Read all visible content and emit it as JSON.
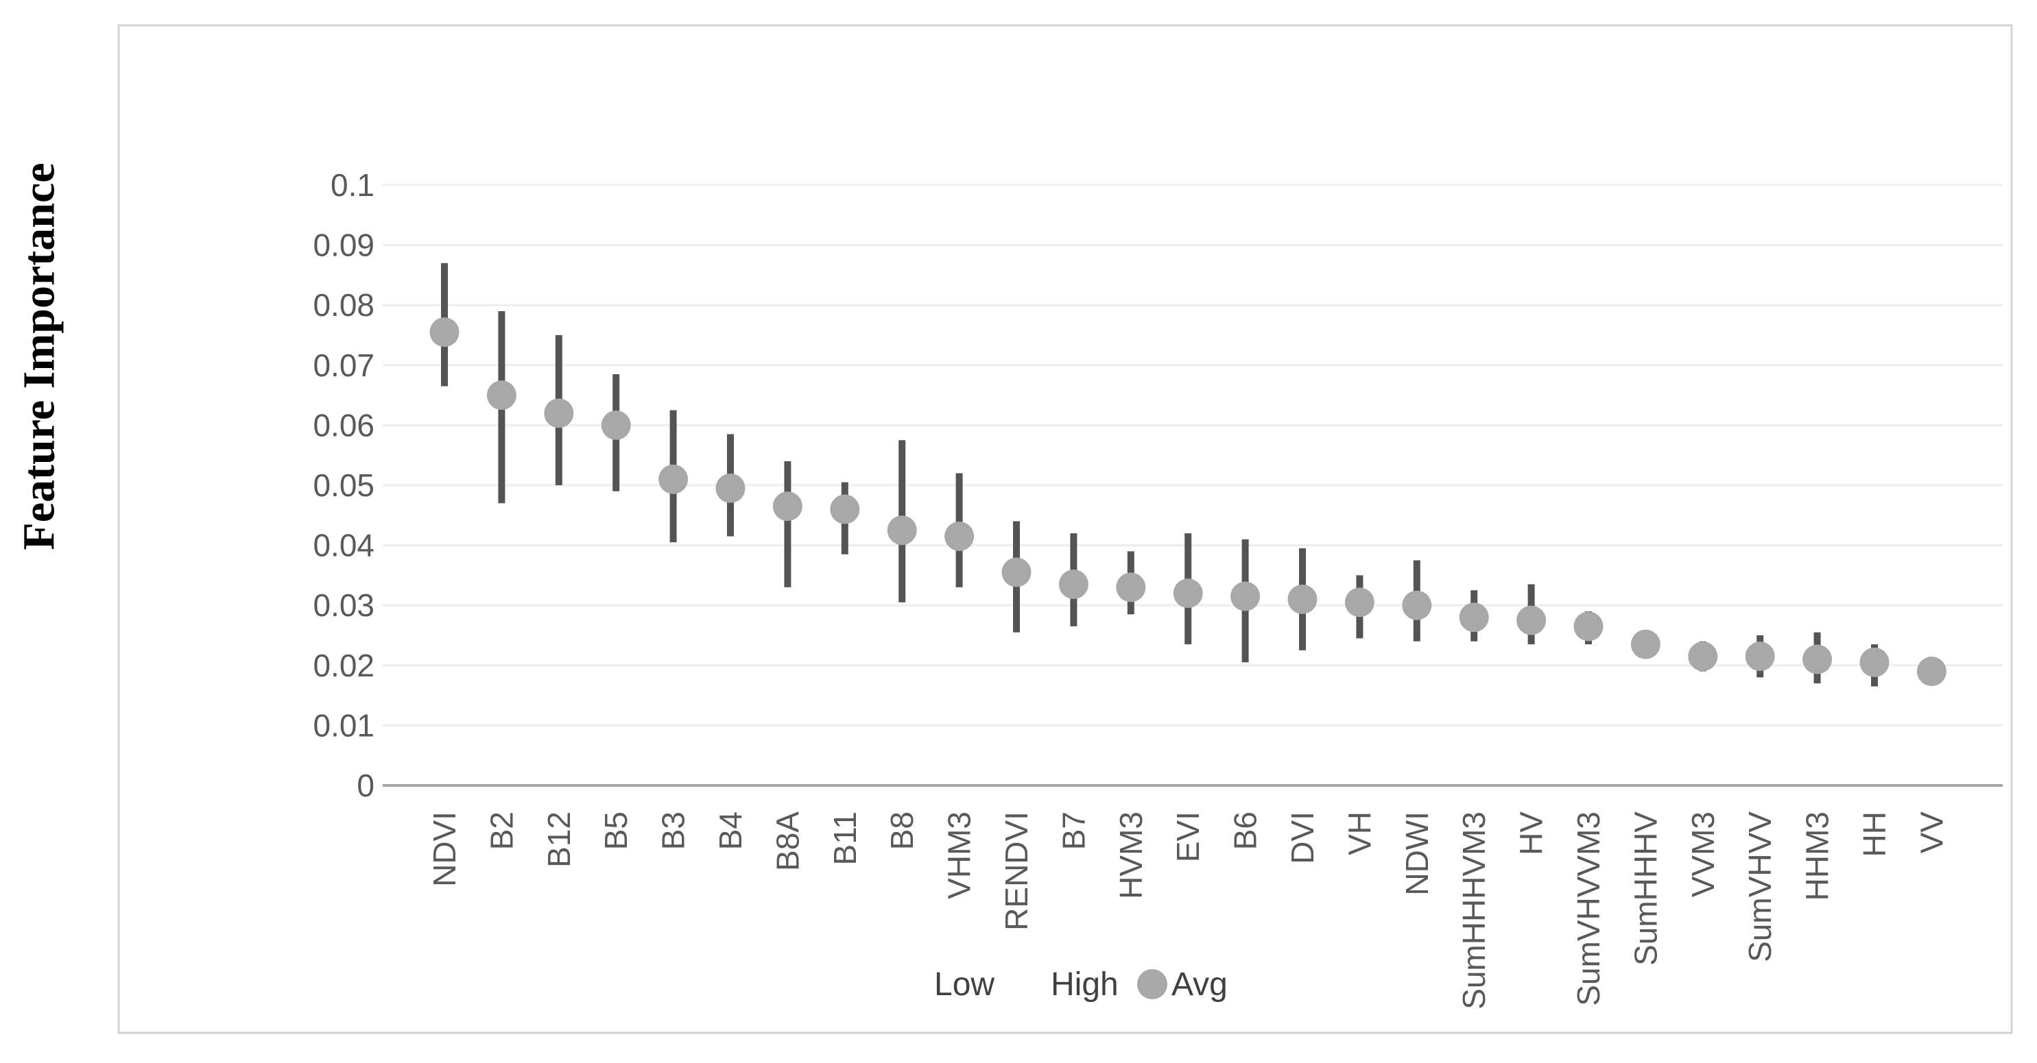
{
  "chart_data": {
    "type": "scatter",
    "subtype": "high-low-range-with-average-marker",
    "title": "",
    "xlabel": "",
    "ylabel": "Feature Importance",
    "ylim": [
      0,
      0.1
    ],
    "ytick_step": 0.01,
    "ytick_labels": [
      "0",
      "0.01",
      "0.02",
      "0.03",
      "0.04",
      "0.05",
      "0.06",
      "0.07",
      "0.08",
      "0.09",
      "0.1"
    ],
    "grid": "horizontal",
    "legend_position": "bottom-center",
    "legend": [
      "Low",
      "High",
      "Avg"
    ],
    "categories": [
      "NDVI",
      "B2",
      "B12",
      "B5",
      "B3",
      "B4",
      "B8A",
      "B11",
      "B8",
      "VHM3",
      "RENDVI",
      "B7",
      "HVM3",
      "EVI",
      "B6",
      "DVI",
      "VH",
      "NDWI",
      "SumHHHVM3",
      "HV",
      "SumVHVVM3",
      "SumHHHV",
      "VVM3",
      "SumVHVV",
      "HHM3",
      "HH",
      "VV"
    ],
    "series": [
      {
        "name": "Low",
        "values": [
          0.0665,
          0.047,
          0.05,
          0.049,
          0.0405,
          0.0415,
          0.033,
          0.0385,
          0.0305,
          0.033,
          0.0255,
          0.0265,
          0.0285,
          0.0235,
          0.0205,
          0.0225,
          0.0245,
          0.024,
          0.024,
          0.0235,
          0.0235,
          0.0225,
          0.019,
          0.018,
          0.017,
          0.0165,
          0.018
        ]
      },
      {
        "name": "High",
        "values": [
          0.087,
          0.079,
          0.075,
          0.0685,
          0.0625,
          0.0585,
          0.054,
          0.0505,
          0.0575,
          0.052,
          0.044,
          0.042,
          0.039,
          0.042,
          0.041,
          0.0395,
          0.035,
          0.0375,
          0.0325,
          0.0335,
          0.029,
          0.0245,
          0.024,
          0.025,
          0.0255,
          0.0235,
          0.0195
        ]
      },
      {
        "name": "Avg",
        "values": [
          0.0755,
          0.065,
          0.062,
          0.06,
          0.051,
          0.0495,
          0.0465,
          0.046,
          0.0425,
          0.0415,
          0.0355,
          0.0335,
          0.033,
          0.032,
          0.0315,
          0.031,
          0.0305,
          0.03,
          0.028,
          0.0275,
          0.0265,
          0.0235,
          0.0215,
          0.0215,
          0.021,
          0.0205,
          0.019
        ]
      }
    ],
    "colors": {
      "range_line": "#545454",
      "avg_marker": "#a8a8a8",
      "gridline": "#efefef",
      "axis_line": "#a6a6a6",
      "tick_text": "#595959",
      "legend_text": "#404040",
      "border": "#d3d3d3",
      "background": "#ffffff"
    }
  }
}
